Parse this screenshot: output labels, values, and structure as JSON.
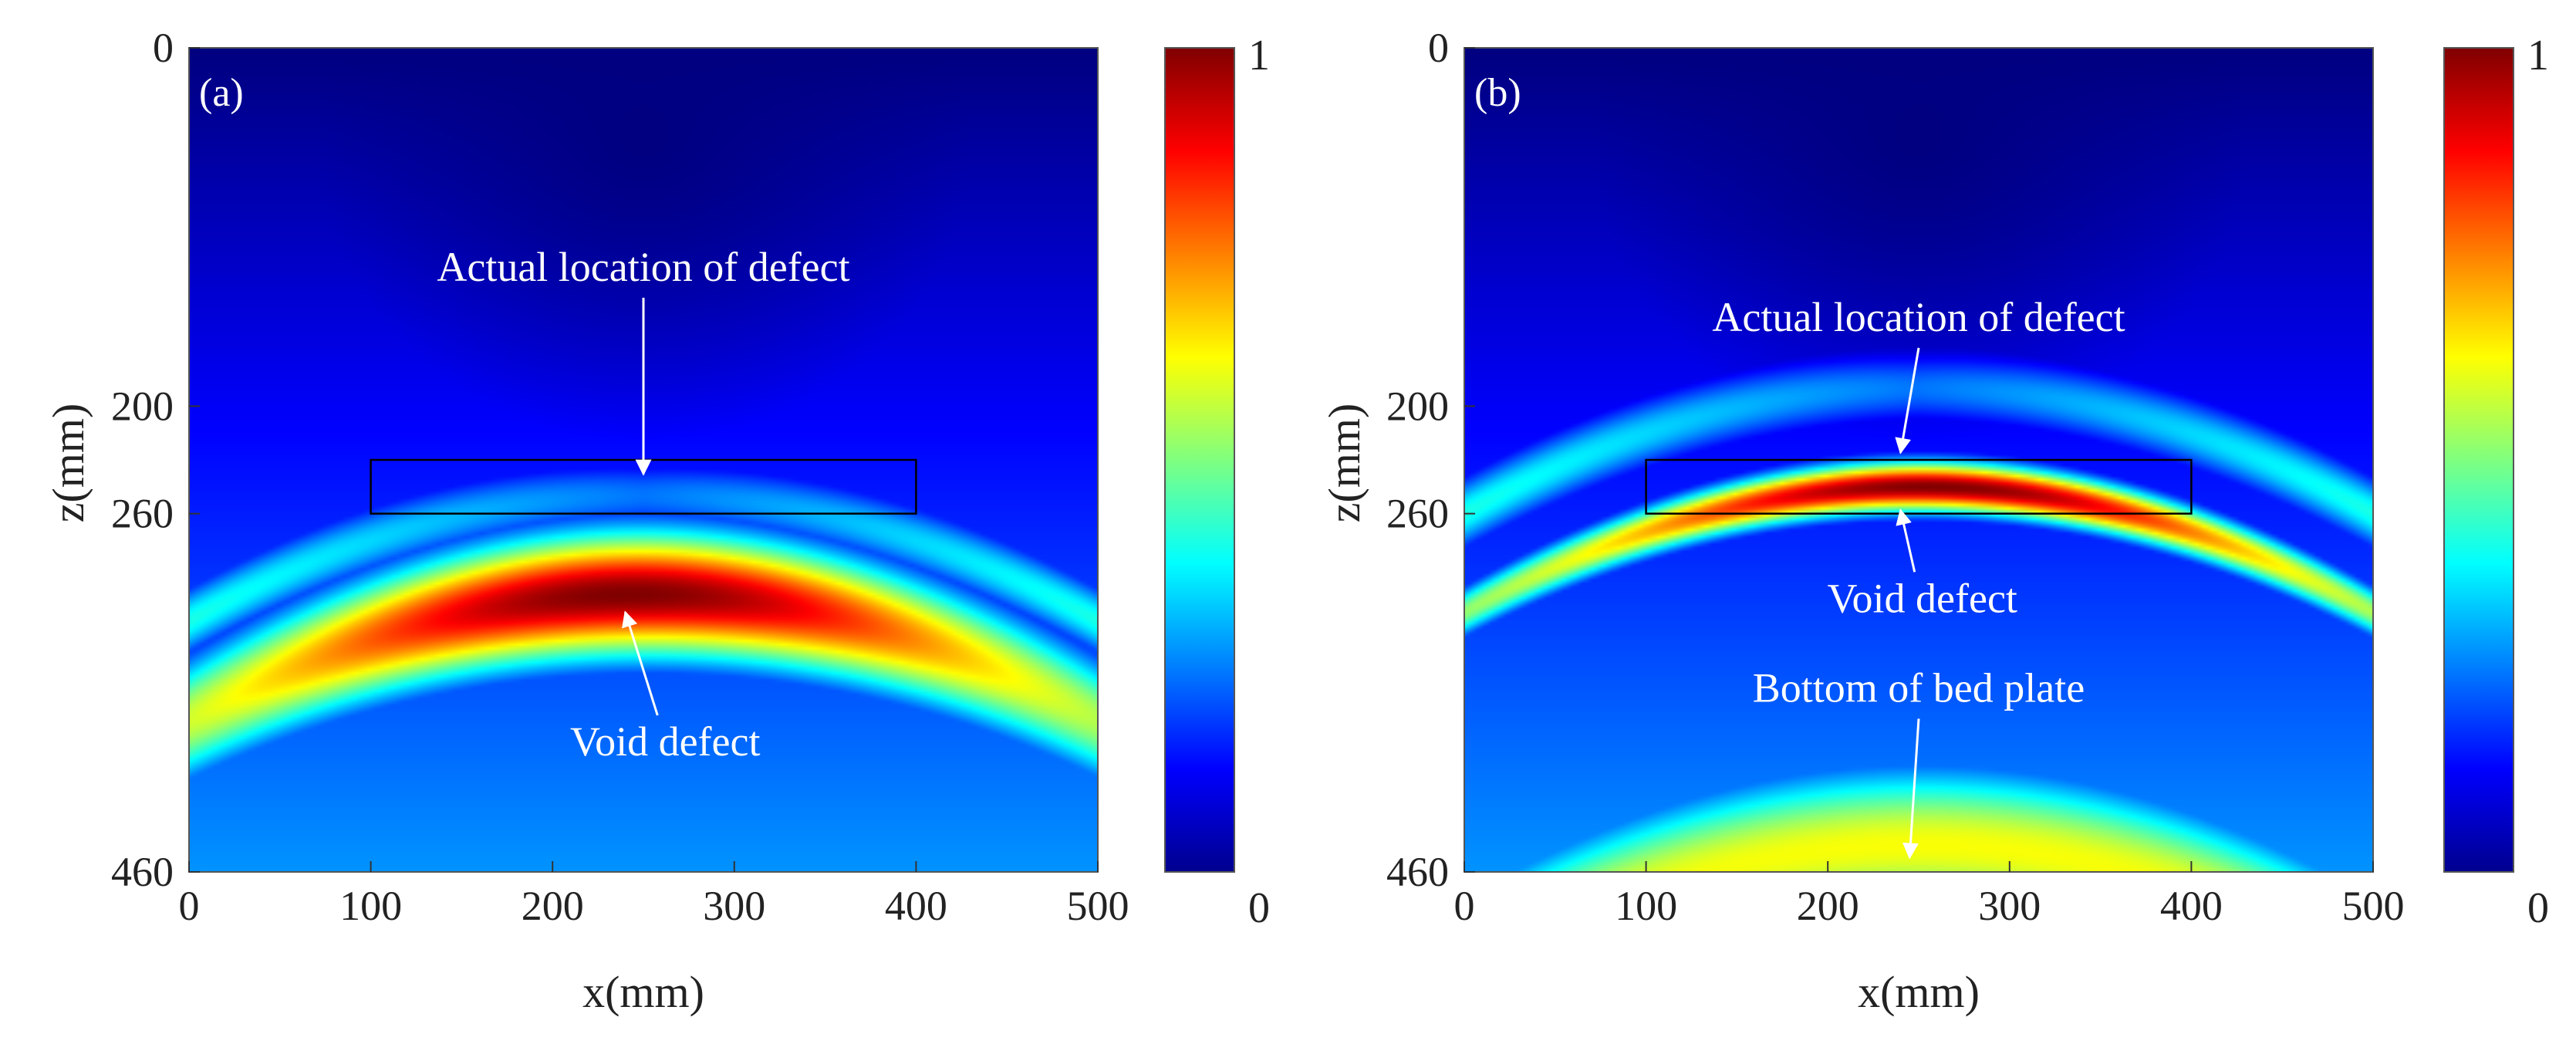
{
  "figure": {
    "panels": [
      {
        "panel_label": "(a)"
      },
      {
        "panel_label": "(b)"
      }
    ]
  },
  "colors": {
    "annotation_text": "#ffffff",
    "axis_text": "#222222",
    "colormap": "jet"
  },
  "chart_data": [
    {
      "type": "heatmap",
      "panel_label": "(a)",
      "title": "",
      "xlabel": "x(mm)",
      "ylabel": "z(mm)",
      "xlim": [
        0,
        500
      ],
      "ylim": [
        0,
        460
      ],
      "y_reversed": true,
      "xticks": [
        0,
        100,
        200,
        300,
        400,
        500
      ],
      "xticklabels": [
        "0",
        "100",
        "200",
        "300",
        "400",
        "500"
      ],
      "yticks": [
        0,
        200,
        260,
        460
      ],
      "yticklabels": [
        "0",
        "200",
        "260",
        "460"
      ],
      "colorbar": {
        "min": 0,
        "max": 1,
        "min_label": "0",
        "max_label": "1",
        "colormap": "jet"
      },
      "defect_box": {
        "x": [
          100,
          400
        ],
        "z": [
          230,
          260
        ]
      },
      "intensity_model": {
        "peak": {
          "x": 240,
          "z": 305,
          "value": 1.0
        },
        "bands": [
          {
            "z_center": 305,
            "sigma": 35,
            "width_x": 200,
            "amplitude": 1.0
          }
        ],
        "low_region": {
          "x": 250,
          "z": 50,
          "value": 0.02
        },
        "background": 0.3
      },
      "annotations": [
        {
          "text": "Actual location of defect",
          "x": 250,
          "z": 130,
          "arrow_to": {
            "x": 250,
            "z": 238
          }
        },
        {
          "text": "Void defect",
          "x": 262,
          "z": 395,
          "arrow_to": {
            "x": 240,
            "z": 315
          }
        }
      ]
    },
    {
      "type": "heatmap",
      "panel_label": "(b)",
      "title": "",
      "xlabel": "x(mm)",
      "ylabel": "z(mm)",
      "xlim": [
        0,
        500
      ],
      "ylim": [
        0,
        460
      ],
      "y_reversed": true,
      "xticks": [
        0,
        100,
        200,
        300,
        400,
        500
      ],
      "xticklabels": [
        "0",
        "100",
        "200",
        "300",
        "400",
        "500"
      ],
      "yticks": [
        0,
        200,
        260,
        460
      ],
      "yticklabels": [
        "0",
        "200",
        "260",
        "460"
      ],
      "colorbar": {
        "min": 0,
        "max": 1,
        "min_label": "0",
        "max_label": "1",
        "colormap": "jet"
      },
      "defect_box": {
        "x": [
          100,
          400
        ],
        "z": [
          230,
          260
        ]
      },
      "intensity_model": {
        "peak": {
          "x": 260,
          "z": 245,
          "value": 1.0
        },
        "bands": [
          {
            "z_center": 245,
            "sigma": 14,
            "width_x": 180,
            "amplitude": 1.0
          },
          {
            "z_center": 445,
            "sigma": 45,
            "width_x": 1000,
            "amplitude": 0.62
          }
        ],
        "low_region": {
          "x": 250,
          "z": 50,
          "value": 0.02
        },
        "background": 0.3
      },
      "annotations": [
        {
          "text": "Actual location of defect",
          "x": 250,
          "z": 158,
          "arrow_to": {
            "x": 240,
            "z": 226
          }
        },
        {
          "text": "Void defect",
          "x": 252,
          "z": 315,
          "arrow_to": {
            "x": 240,
            "z": 258
          }
        },
        {
          "text": "Bottom of bed plate",
          "x": 250,
          "z": 365,
          "arrow_to": {
            "x": 245,
            "z": 452
          }
        }
      ]
    }
  ]
}
